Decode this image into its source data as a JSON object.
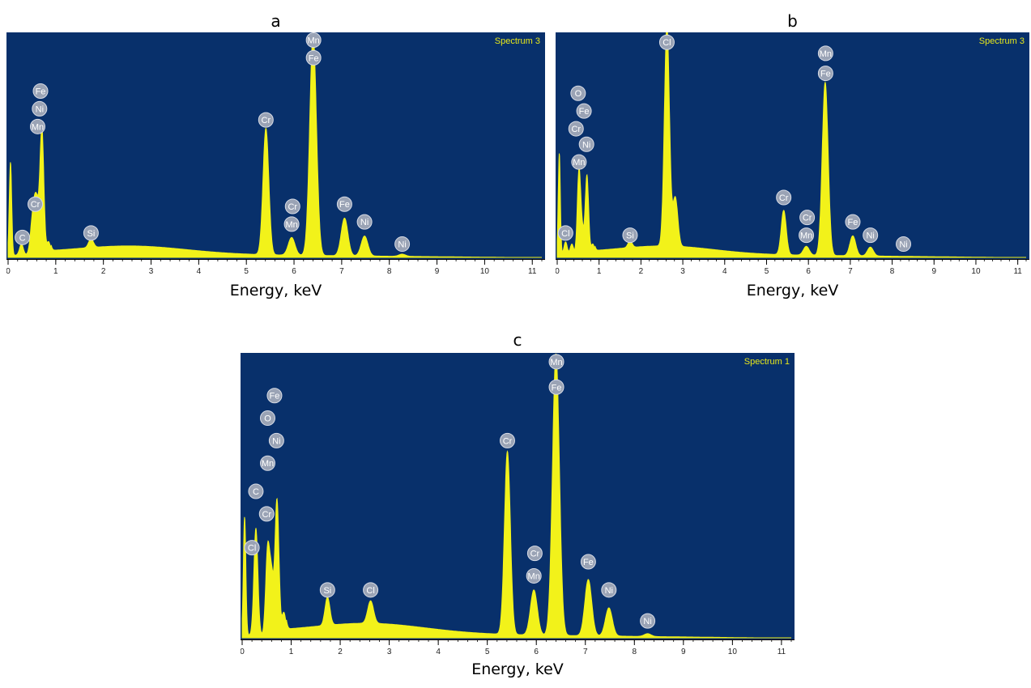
{
  "chart_data": [
    {
      "type": "line",
      "panel_label": "a",
      "title": "Spectrum 3",
      "xlabel": "Energy, keV",
      "ylabel": "",
      "xlim": [
        0,
        11.2
      ],
      "x_ticks": [
        0,
        1,
        2,
        3,
        4,
        5,
        6,
        7,
        8,
        9,
        10,
        11
      ],
      "background_color": "#08306b",
      "fill_color": "#f2f21a",
      "grid": false,
      "peaks": [
        {
          "x": 0.05,
          "y": 0.42,
          "w": 0.025
        },
        {
          "x": 0.28,
          "y": 0.05,
          "w": 0.04
        },
        {
          "x": 0.52,
          "y": 0.16,
          "w": 0.05
        },
        {
          "x": 0.6,
          "y": 0.22,
          "w": 0.05
        },
        {
          "x": 0.71,
          "y": 0.56,
          "w": 0.04
        },
        {
          "x": 0.85,
          "y": 0.06,
          "w": 0.04
        },
        {
          "x": 1.74,
          "y": 0.04,
          "w": 0.05
        },
        {
          "x": 5.41,
          "y": 0.57,
          "w": 0.06
        },
        {
          "x": 5.95,
          "y": 0.08,
          "w": 0.07
        },
        {
          "x": 6.4,
          "y": 1.0,
          "w": 0.07
        },
        {
          "x": 7.06,
          "y": 0.17,
          "w": 0.07
        },
        {
          "x": 7.48,
          "y": 0.09,
          "w": 0.07
        },
        {
          "x": 8.27,
          "y": 0.01,
          "w": 0.07
        }
      ],
      "annotations": [
        {
          "label": "C",
          "x": 0.3,
          "y": 0.09
        },
        {
          "label": "Cr",
          "x": 0.57,
          "y": 0.24
        },
        {
          "label": "Mn",
          "x": 0.62,
          "y": 0.59
        },
        {
          "label": "Ni",
          "x": 0.66,
          "y": 0.67
        },
        {
          "label": "Fe",
          "x": 0.68,
          "y": 0.75
        },
        {
          "label": "Si",
          "x": 1.74,
          "y": 0.11
        },
        {
          "label": "Cr",
          "x": 5.41,
          "y": 0.62
        },
        {
          "label": "Mn",
          "x": 5.95,
          "y": 0.15
        },
        {
          "label": "Cr",
          "x": 5.97,
          "y": 0.23
        },
        {
          "label": "Fe",
          "x": 6.41,
          "y": 0.9
        },
        {
          "label": "Mn",
          "x": 6.41,
          "y": 0.98
        },
        {
          "label": "Fe",
          "x": 7.06,
          "y": 0.24
        },
        {
          "label": "Ni",
          "x": 7.48,
          "y": 0.16
        },
        {
          "label": "Ni",
          "x": 8.27,
          "y": 0.06
        }
      ]
    },
    {
      "type": "line",
      "panel_label": "b",
      "title": "Spectrum 3",
      "xlabel": "Energy, keV",
      "ylabel": "",
      "xlim": [
        0,
        11.2
      ],
      "x_ticks": [
        0,
        1,
        2,
        3,
        4,
        5,
        6,
        7,
        8,
        9,
        10,
        11
      ],
      "background_color": "#08306b",
      "fill_color": "#f2f21a",
      "grid": false,
      "peaks": [
        {
          "x": 0.05,
          "y": 0.46,
          "w": 0.025
        },
        {
          "x": 0.2,
          "y": 0.06,
          "w": 0.04
        },
        {
          "x": 0.35,
          "y": 0.05,
          "w": 0.04
        },
        {
          "x": 0.52,
          "y": 0.38,
          "w": 0.04
        },
        {
          "x": 0.6,
          "y": 0.1,
          "w": 0.04
        },
        {
          "x": 0.71,
          "y": 0.36,
          "w": 0.04
        },
        {
          "x": 0.85,
          "y": 0.05,
          "w": 0.04
        },
        {
          "x": 1.74,
          "y": 0.03,
          "w": 0.05
        },
        {
          "x": 2.62,
          "y": 1.0,
          "w": 0.06
        },
        {
          "x": 2.82,
          "y": 0.22,
          "w": 0.06
        },
        {
          "x": 5.41,
          "y": 0.2,
          "w": 0.06
        },
        {
          "x": 5.95,
          "y": 0.04,
          "w": 0.07
        },
        {
          "x": 6.4,
          "y": 0.78,
          "w": 0.07
        },
        {
          "x": 7.06,
          "y": 0.09,
          "w": 0.07
        },
        {
          "x": 7.48,
          "y": 0.04,
          "w": 0.07
        }
      ],
      "annotations": [
        {
          "label": "Cl",
          "x": 0.2,
          "y": 0.11
        },
        {
          "label": "Mn",
          "x": 0.52,
          "y": 0.43
        },
        {
          "label": "Ni",
          "x": 0.7,
          "y": 0.51
        },
        {
          "label": "Cr",
          "x": 0.45,
          "y": 0.58
        },
        {
          "label": "Fe",
          "x": 0.64,
          "y": 0.66
        },
        {
          "label": "O",
          "x": 0.5,
          "y": 0.74
        },
        {
          "label": "Si",
          "x": 1.74,
          "y": 0.1
        },
        {
          "label": "Cl",
          "x": 2.62,
          "y": 0.97
        },
        {
          "label": "Cr",
          "x": 5.41,
          "y": 0.27
        },
        {
          "label": "Mn",
          "x": 5.95,
          "y": 0.1
        },
        {
          "label": "Cr",
          "x": 5.97,
          "y": 0.18
        },
        {
          "label": "Fe",
          "x": 6.41,
          "y": 0.83
        },
        {
          "label": "Mn",
          "x": 6.41,
          "y": 0.92
        },
        {
          "label": "Fe",
          "x": 7.06,
          "y": 0.16
        },
        {
          "label": "Ni",
          "x": 7.48,
          "y": 0.1
        },
        {
          "label": "Ni",
          "x": 8.27,
          "y": 0.06
        }
      ]
    },
    {
      "type": "line",
      "panel_label": "c",
      "title": "Spectrum 1",
      "xlabel": "Energy, keV",
      "ylabel": "",
      "xlim": [
        0,
        11.2
      ],
      "x_ticks": [
        0,
        1,
        2,
        3,
        4,
        5,
        6,
        7,
        8,
        9,
        10,
        11
      ],
      "background_color": "#08306b",
      "fill_color": "#f2f21a",
      "grid": false,
      "peaks": [
        {
          "x": 0.05,
          "y": 0.42,
          "w": 0.025
        },
        {
          "x": 0.28,
          "y": 0.38,
          "w": 0.04
        },
        {
          "x": 0.52,
          "y": 0.3,
          "w": 0.04
        },
        {
          "x": 0.6,
          "y": 0.2,
          "w": 0.04
        },
        {
          "x": 0.71,
          "y": 0.48,
          "w": 0.04
        },
        {
          "x": 0.85,
          "y": 0.08,
          "w": 0.04
        },
        {
          "x": 1.74,
          "y": 0.1,
          "w": 0.05
        },
        {
          "x": 2.62,
          "y": 0.08,
          "w": 0.06
        },
        {
          "x": 5.41,
          "y": 0.65,
          "w": 0.06
        },
        {
          "x": 5.95,
          "y": 0.16,
          "w": 0.07
        },
        {
          "x": 6.4,
          "y": 1.0,
          "w": 0.07
        },
        {
          "x": 7.06,
          "y": 0.2,
          "w": 0.07
        },
        {
          "x": 7.48,
          "y": 0.1,
          "w": 0.07
        },
        {
          "x": 8.27,
          "y": 0.01,
          "w": 0.07
        }
      ],
      "annotations": [
        {
          "label": "Cl",
          "x": 0.2,
          "y": 0.32
        },
        {
          "label": "Cr",
          "x": 0.5,
          "y": 0.44
        },
        {
          "label": "C",
          "x": 0.28,
          "y": 0.52
        },
        {
          "label": "Mn",
          "x": 0.52,
          "y": 0.62
        },
        {
          "label": "Ni",
          "x": 0.7,
          "y": 0.7
        },
        {
          "label": "O",
          "x": 0.52,
          "y": 0.78
        },
        {
          "label": "Fe",
          "x": 0.66,
          "y": 0.86
        },
        {
          "label": "Si",
          "x": 1.74,
          "y": 0.17
        },
        {
          "label": "Cl",
          "x": 2.62,
          "y": 0.17
        },
        {
          "label": "Cr",
          "x": 5.41,
          "y": 0.7
        },
        {
          "label": "Mn",
          "x": 5.95,
          "y": 0.22
        },
        {
          "label": "Cr",
          "x": 5.97,
          "y": 0.3
        },
        {
          "label": "Fe",
          "x": 6.41,
          "y": 0.89
        },
        {
          "label": "Mn",
          "x": 6.41,
          "y": 0.98
        },
        {
          "label": "Fe",
          "x": 7.06,
          "y": 0.27
        },
        {
          "label": "Ni",
          "x": 7.48,
          "y": 0.17
        },
        {
          "label": "Ni",
          "x": 8.27,
          "y": 0.06
        }
      ]
    }
  ]
}
